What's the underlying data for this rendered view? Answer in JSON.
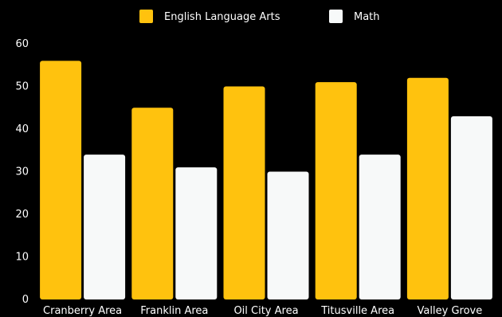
{
  "chart_data": {
    "type": "bar",
    "categories": [
      "Cranberry Area",
      "Franklin Area",
      "Oil City Area",
      "Titusville Area",
      "Valley Grove"
    ],
    "series": [
      {
        "name": "English Language Arts",
        "values": [
          56,
          45,
          50,
          51,
          52
        ],
        "color": "#FFC20E"
      },
      {
        "name": "Math",
        "values": [
          34,
          31,
          30,
          34,
          43
        ],
        "color": "#F7F9F9"
      }
    ],
    "y_ticks": [
      "0",
      "10",
      "20",
      "30",
      "40",
      "50",
      "60"
    ],
    "ylim": [
      0,
      60
    ],
    "grid": false,
    "legend_position": "top-center",
    "title": "",
    "xlabel": "",
    "ylabel": ""
  },
  "colors": {
    "background": "#000000",
    "text": "#ffffff"
  }
}
